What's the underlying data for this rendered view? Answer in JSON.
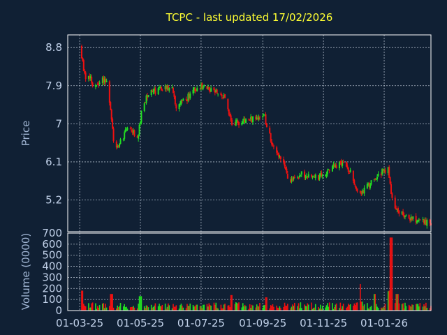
{
  "chart_data": {
    "type": "candlestick",
    "title": "TCPC - last updated 17/02/2026",
    "price_panel": {
      "ylabel": "Price",
      "y_ticks": [
        "8.8",
        "7.9",
        "7",
        "6.1",
        "5.2"
      ],
      "ylim": [
        4.45,
        9.1
      ]
    },
    "volume_panel": {
      "ylabel": "Volume (0000)",
      "y_ticks": [
        "0",
        "100",
        "200",
        "300",
        "400",
        "500",
        "600",
        "700"
      ],
      "ylim": [
        0,
        700
      ]
    },
    "x_tick_labels": [
      "01-03-25",
      "01-05-25",
      "01-07-25",
      "01-09-25",
      "01-11-25",
      "01-01-26"
    ],
    "x_tick_dates": [
      "2025-03-01",
      "2025-05-01",
      "2025-07-01",
      "2025-09-01",
      "2025-11-01",
      "2026-01-01"
    ],
    "x_range": [
      "2025-02-17",
      "2026-02-17"
    ],
    "colors": {
      "up": "#22dd22",
      "down": "#ee1111"
    },
    "price_keypoints": [
      [
        "2025-03-01",
        8.85
      ],
      [
        "2025-03-06",
        8.15
      ],
      [
        "2025-03-11",
        8.1
      ],
      [
        "2025-03-16",
        7.8
      ],
      [
        "2025-03-22",
        8.0
      ],
      [
        "2025-03-28",
        8.05
      ],
      [
        "2025-04-01",
        7.4
      ],
      [
        "2025-04-05",
        6.4
      ],
      [
        "2025-04-10",
        6.55
      ],
      [
        "2025-04-20",
        6.95
      ],
      [
        "2025-04-28",
        6.65
      ],
      [
        "2025-05-03",
        7.4
      ],
      [
        "2025-05-10",
        7.75
      ],
      [
        "2025-05-20",
        7.8
      ],
      [
        "2025-05-28",
        7.85
      ],
      [
        "2025-06-02",
        7.9
      ],
      [
        "2025-06-05",
        7.4
      ],
      [
        "2025-06-15",
        7.55
      ],
      [
        "2025-06-25",
        7.85
      ],
      [
        "2025-07-05",
        7.9
      ],
      [
        "2025-07-15",
        7.75
      ],
      [
        "2025-07-25",
        7.6
      ],
      [
        "2025-08-01",
        7.0
      ],
      [
        "2025-08-10",
        7.05
      ],
      [
        "2025-08-20",
        7.1
      ],
      [
        "2025-08-28",
        7.15
      ],
      [
        "2025-09-03",
        7.15
      ],
      [
        "2025-09-06",
        6.85
      ],
      [
        "2025-09-12",
        6.4
      ],
      [
        "2025-09-20",
        6.15
      ],
      [
        "2025-09-25",
        5.85
      ],
      [
        "2025-09-28",
        5.55
      ],
      [
        "2025-10-03",
        5.75
      ],
      [
        "2025-10-10",
        5.8
      ],
      [
        "2025-10-20",
        5.75
      ],
      [
        "2025-10-27",
        5.75
      ],
      [
        "2025-11-05",
        5.85
      ],
      [
        "2025-11-15",
        6.05
      ],
      [
        "2025-11-22",
        6.1
      ],
      [
        "2025-11-28",
        5.85
      ],
      [
        "2025-12-05",
        5.35
      ],
      [
        "2025-12-12",
        5.45
      ],
      [
        "2025-12-22",
        5.65
      ],
      [
        "2025-12-28",
        5.85
      ],
      [
        "2026-01-05",
        5.95
      ],
      [
        "2026-01-08",
        5.3
      ],
      [
        "2026-01-12",
        5.0
      ],
      [
        "2026-01-25",
        4.8
      ],
      [
        "2026-02-17",
        4.65
      ]
    ],
    "volume_spikes": [
      [
        "2025-03-03",
        180
      ],
      [
        "2025-04-02",
        150
      ],
      [
        "2025-05-01",
        130
      ],
      [
        "2025-08-01",
        140
      ],
      [
        "2025-09-05",
        120
      ],
      [
        "2025-12-07",
        240
      ],
      [
        "2025-12-22",
        150
      ],
      [
        "2026-01-08",
        660
      ],
      [
        "2026-01-14",
        150
      ]
    ]
  }
}
